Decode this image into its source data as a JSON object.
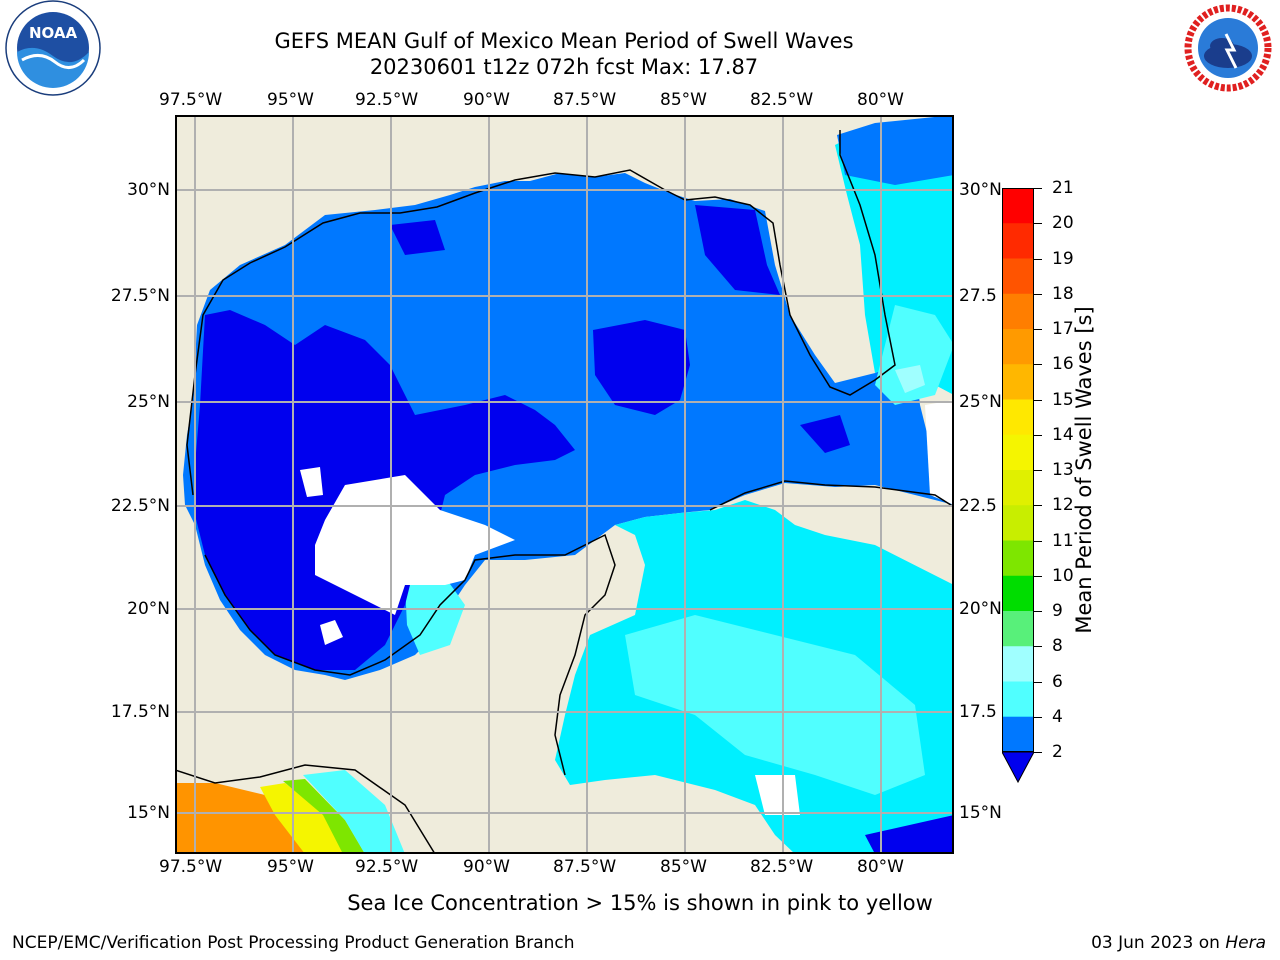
{
  "title_line1": "GEFS MEAN Gulf of Mexico Mean Period of Swell Waves",
  "title_line2": "20230601 t12z 072h fcst   Max: 17.87",
  "lon_ticks": [
    "97.5°W",
    "95°W",
    "92.5°W",
    "90°W",
    "87.5°W",
    "85°W",
    "82.5°W",
    "80°W"
  ],
  "lat_ticks_left": [
    "30°N",
    "27.5°N",
    "25°N",
    "22.5°N",
    "20°N",
    "17.5°N",
    "15°N"
  ],
  "lat_ticks_right": [
    "30°N",
    "27.5",
    "25°N",
    "22.5",
    "20°N",
    "17.5",
    "15°N"
  ],
  "map_extent": {
    "lon_min": -98,
    "lon_max": -78.2,
    "lat_min": 14,
    "lat_max": 31.8
  },
  "colorbar": {
    "label": "Mean Period of Swell Waves [s]",
    "ticks": [
      "21",
      "20",
      "19",
      "18",
      "17",
      "16",
      "15",
      "14",
      "13",
      "12",
      "11",
      "10",
      "9",
      "8",
      "6",
      "4",
      "2"
    ],
    "colors_top_to_bottom": [
      "#ff0000",
      "#ff2a00",
      "#ff5400",
      "#ff7e00",
      "#ff9a00",
      "#ffb700",
      "#ffe800",
      "#f5f500",
      "#e0f000",
      "#c8ee00",
      "#7ee600",
      "#00dd00",
      "#58f07a",
      "#a0ffff",
      "#50ffff",
      "#00f0ff",
      "#0078ff"
    ],
    "extend_color": "#0000ee"
  },
  "colors": {
    "land": "#efecdc",
    "ocean_2_4": "#0078ff",
    "ocean_lt2": "#0000ee",
    "ocean_4_6": "#00f0ff",
    "ocean_6_8": "#50ffff",
    "ocean_8_9": "#a0ffff",
    "pacific_orange": "#ff9400",
    "gridline": "#b0b0b0"
  },
  "note": "Sea Ice Concentration > 15% is shown in pink to yellow",
  "footer_left": "NCEP/EMC/Verification Post Processing Product Generation Branch",
  "footer_date": "03 Jun 2023 on ",
  "footer_host": "Hera",
  "logo_noaa": "NOAA",
  "logo_nws_text": "NATIONAL WEATHER SERVICE"
}
